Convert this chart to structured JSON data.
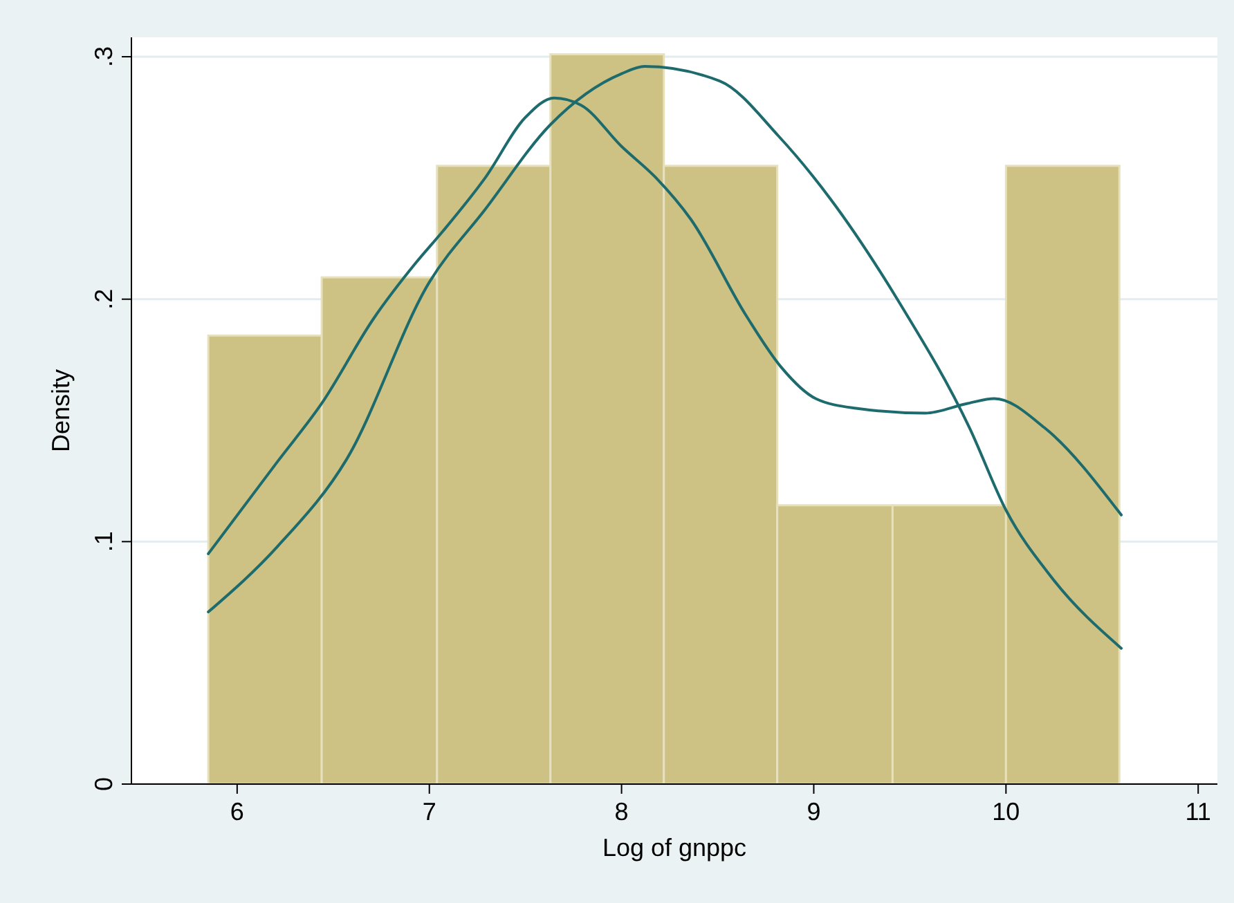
{
  "chart_data": {
    "type": "histogram",
    "xlabel": "Log of gnppc",
    "ylabel": "Density",
    "bins": [
      5.85,
      6.44,
      7.04,
      7.63,
      8.22,
      8.81,
      9.41,
      10.0,
      10.59
    ],
    "values": [
      0.185,
      0.209,
      0.255,
      0.301,
      0.255,
      0.115,
      0.115,
      0.255
    ],
    "color": "#cdc283",
    "series": [
      {
        "type": "line",
        "color": "#1e6b6e",
        "x": [
          5.85,
          6.21,
          6.57,
          7.0,
          7.29,
          7.63,
          8.0,
          8.12,
          8.51,
          8.82,
          9.09,
          9.45,
          9.81,
          10.0,
          10.24,
          10.6
        ],
        "values": [
          0.071,
          0.098,
          0.134,
          0.207,
          0.237,
          0.272,
          0.293,
          0.296,
          0.29,
          0.267,
          0.241,
          0.198,
          0.147,
          0.113,
          0.085,
          0.056
        ]
      },
      {
        "type": "line",
        "color": "#1e6b6e",
        "x": [
          5.85,
          6.21,
          6.44,
          6.71,
          6.93,
          7.07,
          7.29,
          7.5,
          7.65,
          7.79,
          8.0,
          8.18,
          8.36,
          8.65,
          8.83,
          9.01,
          9.22,
          9.58,
          9.8,
          9.94,
          10.2,
          10.6
        ],
        "values": [
          0.095,
          0.133,
          0.157,
          0.192,
          0.215,
          0.228,
          0.25,
          0.275,
          0.283,
          0.28,
          0.263,
          0.25,
          0.233,
          0.193,
          0.172,
          0.159,
          0.155,
          0.153,
          0.157,
          0.159,
          0.147,
          0.111
        ]
      }
    ],
    "xlim": [
      5.45,
      11.1
    ],
    "ylim": [
      0,
      0.308
    ],
    "xticks": [
      6,
      7,
      8,
      9,
      10,
      11
    ],
    "yticks": [
      {
        "value": 0,
        "label": "0"
      },
      {
        "value": 0.1,
        "label": ".1"
      },
      {
        "value": 0.2,
        "label": ".2"
      },
      {
        "value": 0.3,
        "label": ".3"
      }
    ],
    "grid": "y"
  }
}
